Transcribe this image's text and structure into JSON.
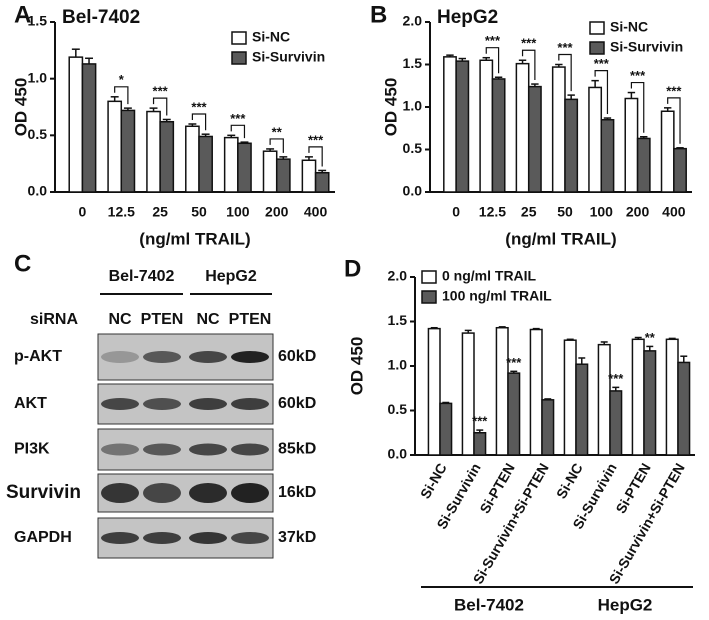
{
  "chart_data": [
    {
      "type": "bar",
      "panel_label": "A",
      "title": "Bel-7402",
      "ylabel": "OD 450",
      "xlabel": "(ng/ml TRAIL)",
      "categories": [
        "0",
        "12.5",
        "25",
        "50",
        "100",
        "200",
        "400"
      ],
      "series": [
        {
          "name": "Si-NC",
          "color": "#ffffff",
          "values": [
            1.19,
            0.8,
            0.71,
            0.58,
            0.48,
            0.36,
            0.28
          ],
          "errors": [
            0.07,
            0.04,
            0.03,
            0.02,
            0.02,
            0.02,
            0.03
          ]
        },
        {
          "name": "Si-Survivin",
          "color": "#5a5a5a",
          "values": [
            1.13,
            0.72,
            0.62,
            0.49,
            0.43,
            0.29,
            0.17
          ],
          "errors": [
            0.05,
            0.02,
            0.02,
            0.02,
            0.01,
            0.02,
            0.02
          ]
        }
      ],
      "significance": [
        null,
        "*",
        "***",
        "***",
        "***",
        "**",
        "***"
      ],
      "significance_bracket": true,
      "ylim": [
        0,
        1.5
      ],
      "yticks": [
        {
          "value": 0,
          "label": "0.0"
        },
        0.5,
        {
          "value": 1,
          "label": "1.0"
        },
        1.5
      ],
      "legend": "upper right"
    },
    {
      "type": "bar",
      "panel_label": "B",
      "title": "HepG2",
      "ylabel": "OD 450",
      "xlabel": "(ng/ml TRAIL)",
      "categories": [
        "0",
        "12.5",
        "25",
        "50",
        "100",
        "200",
        "400"
      ],
      "series": [
        {
          "name": "Si-NC",
          "color": "#ffffff",
          "values": [
            1.59,
            1.55,
            1.51,
            1.47,
            1.23,
            1.1,
            0.95
          ],
          "errors": [
            0.02,
            0.03,
            0.04,
            0.03,
            0.08,
            0.07,
            0.04
          ]
        },
        {
          "name": "Si-Survivin",
          "color": "#5a5a5a",
          "values": [
            1.54,
            1.33,
            1.24,
            1.09,
            0.85,
            0.63,
            0.51
          ],
          "errors": [
            0.03,
            0.02,
            0.03,
            0.05,
            0.02,
            0.02,
            0.01
          ]
        }
      ],
      "significance": [
        null,
        "***",
        "***",
        "***",
        "***",
        "***",
        "***"
      ],
      "significance_bracket": true,
      "ylim": [
        0,
        2
      ],
      "yticks": [
        {
          "value": 0,
          "label": "0.0"
        },
        0.5,
        {
          "value": 1,
          "label": "1.0"
        },
        1.5,
        {
          "value": 2,
          "label": "2.0"
        }
      ],
      "legend": "upper right"
    },
    {
      "type": "bar",
      "panel_label": "D",
      "ylabel": "OD 450",
      "categories": [
        "Si-NC",
        "Si-Survivin",
        "Si-PTEN",
        "Si-Survivin+Si-PTEN",
        "Si-NC",
        "Si-Survivin",
        "Si-PTEN",
        "Si-Survivin+Si-PTEN"
      ],
      "groups": [
        {
          "name": "Bel-7402",
          "size": 4
        },
        {
          "name": "HepG2",
          "size": 4
        }
      ],
      "series": [
        {
          "name": "0 ng/ml TRAIL",
          "color": "#ffffff",
          "values": [
            1.42,
            1.37,
            1.43,
            1.41,
            1.29,
            1.24,
            1.3,
            1.3
          ],
          "errors": [
            0.01,
            0.03,
            0.01,
            0.01,
            0.01,
            0.03,
            0.02,
            0.01
          ]
        },
        {
          "name": "100 ng/ml TRAIL",
          "color": "#5a5a5a",
          "values": [
            0.58,
            0.25,
            0.92,
            0.62,
            1.02,
            0.72,
            1.17,
            1.04
          ],
          "errors": [
            0.01,
            0.03,
            0.02,
            0.01,
            0.07,
            0.04,
            0.05,
            0.07
          ]
        }
      ],
      "significance": [
        null,
        "***",
        "***",
        null,
        null,
        "***",
        "**",
        null
      ],
      "significance_bracket": false,
      "ylim": [
        0,
        2
      ],
      "yticks": [
        {
          "value": 0,
          "label": "0.0"
        },
        0.5,
        {
          "value": 1,
          "label": "1.0"
        },
        1.5,
        {
          "value": 2,
          "label": "2.0"
        }
      ],
      "legend": "upper left"
    }
  ],
  "blot": {
    "panel_label": "C",
    "cell_lines": [
      "Bel-7402",
      "HepG2"
    ],
    "sirna_label": "siRNA",
    "lanes": [
      "NC",
      "PTEN",
      "NC",
      "PTEN"
    ],
    "rows": [
      {
        "protein": "p-AKT",
        "size": "60kD"
      },
      {
        "protein": "AKT",
        "size": "60kD"
      },
      {
        "protein": "PI3K",
        "size": "85kD"
      },
      {
        "protein": "Survivin",
        "size": "16kD"
      },
      {
        "protein": "GAPDH",
        "size": "37kD"
      }
    ]
  }
}
